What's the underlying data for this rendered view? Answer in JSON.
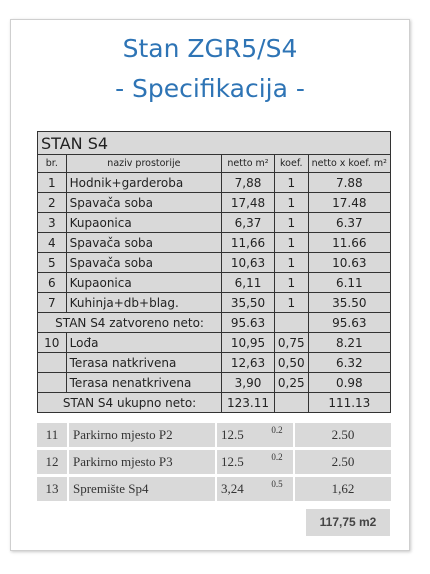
{
  "title": {
    "line1": "Stan ZGR5/S4",
    "line2": "- Specifikacija -"
  },
  "table": {
    "heading": "STAN S4",
    "columns": [
      "br.",
      "naziv prostorije",
      "netto m²",
      "koef.",
      "netto x koef. m²"
    ],
    "rows": [
      {
        "no": "1",
        "name": "Hodnik+garderoba",
        "net": "7,88",
        "coef": "1",
        "total": "7.88"
      },
      {
        "no": "2",
        "name": "Spavača soba",
        "net": "17,48",
        "coef": "1",
        "total": "17.48"
      },
      {
        "no": "3",
        "name": "Kupaonica",
        "net": "6,37",
        "coef": "1",
        "total": "6.37"
      },
      {
        "no": "4",
        "name": "Spavača soba",
        "net": "11,66",
        "coef": "1",
        "total": "11.66"
      },
      {
        "no": "5",
        "name": "Spavača soba",
        "net": "10,63",
        "coef": "1",
        "total": "10.63"
      },
      {
        "no": "6",
        "name": "Kupaonica",
        "net": "6,11",
        "coef": "1",
        "total": "6.11"
      },
      {
        "no": "7",
        "name": "Kuhinja+db+blag.",
        "net": "35,50",
        "coef": "1",
        "total": "35.50"
      }
    ],
    "closed": {
      "label": "STAN S4 zatvoreno neto:",
      "net": "95.63",
      "total": "95.63"
    },
    "outdoor": [
      {
        "no": "10",
        "name": "Lođa",
        "net": "10,95",
        "coef": "0,75",
        "total": "8.21"
      },
      {
        "no": "",
        "name": "Terasa natkrivena",
        "net": "12,63",
        "coef": "0,50",
        "total": "6.32"
      },
      {
        "no": "",
        "name": "Terasa nenatkrivena",
        "net": "3,90",
        "coef": "0,25",
        "total": "0.98"
      }
    ],
    "gross": {
      "label": "STAN S4 ukupno neto:",
      "net": "123.11",
      "total": "111.13"
    }
  },
  "extras": [
    {
      "no": "11",
      "name": "Parkirno mjesto P2",
      "net": "12.5",
      "coef": "0.2",
      "total": "2.50"
    },
    {
      "no": "12",
      "name": "Parkirno mjesto P3",
      "net": "12.5",
      "coef": "0.2",
      "total": "2.50"
    },
    {
      "no": "13",
      "name": "Spremište Sp4",
      "net": "3,24",
      "coef": "0.5",
      "total": "1,62"
    }
  ],
  "grand_total": "117,75 m2"
}
